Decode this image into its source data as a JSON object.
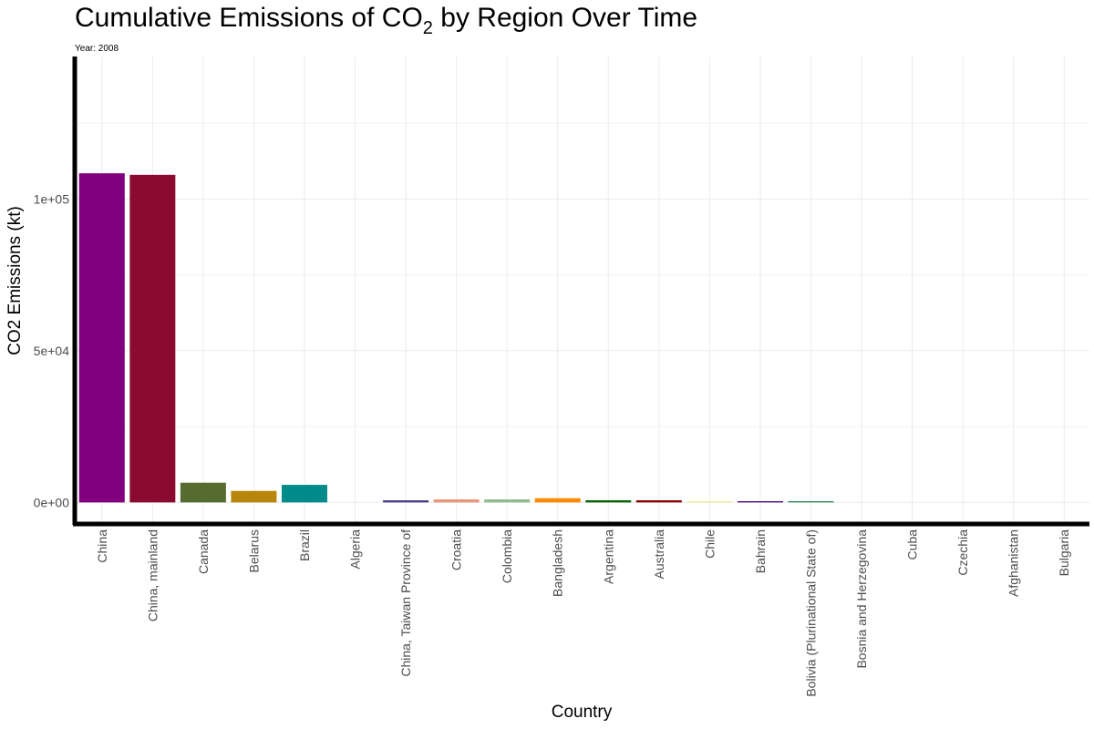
{
  "chart_data": {
    "type": "bar",
    "title_main": "Cumulative Emissions of CO",
    "title_sub": "2",
    "title_rest": " by Region Over Time",
    "subtitle": "Year: 2008",
    "xlabel": "Country",
    "ylabel": "CO2 Emissions (kt)",
    "ylim": [
      -6800,
      147000
    ],
    "yticks": [
      0,
      50000,
      100000
    ],
    "ytick_labels": [
      "0e+00",
      "5e+04",
      "1e+05"
    ],
    "grid": true,
    "legend": "none",
    "categories": [
      "China",
      "China, mainland",
      "Canada",
      "Belarus",
      "Brazil",
      "Algeria",
      "China, Taiwan Province of",
      "Croatia",
      "Colombia",
      "Bangladesh",
      "Argentina",
      "Australia",
      "Chile",
      "Bahrain",
      "Bolivia (Plurinational State of)",
      "Bosnia and Herzegovina",
      "Cuba",
      "Czechia",
      "Afghanistan",
      "Bulgaria"
    ],
    "values": [
      108500,
      108000,
      6500,
      3800,
      5800,
      0,
      700,
      1000,
      1000,
      1400,
      700,
      700,
      350,
      400,
      400,
      0,
      0,
      0,
      0,
      0
    ],
    "colors": [
      "#800080",
      "#8b0a2f",
      "#556b2f",
      "#b8860b",
      "#008b8b",
      "#ffffff",
      "#483d8b",
      "#e9967a",
      "#8fbc8f",
      "#ff8c00",
      "#006400",
      "#8b0000",
      "#f0e68c",
      "#4b0082",
      "#2e8b57",
      "#ffffff",
      "#ffffff",
      "#ffffff",
      "#ffffff",
      "#ffffff"
    ]
  }
}
